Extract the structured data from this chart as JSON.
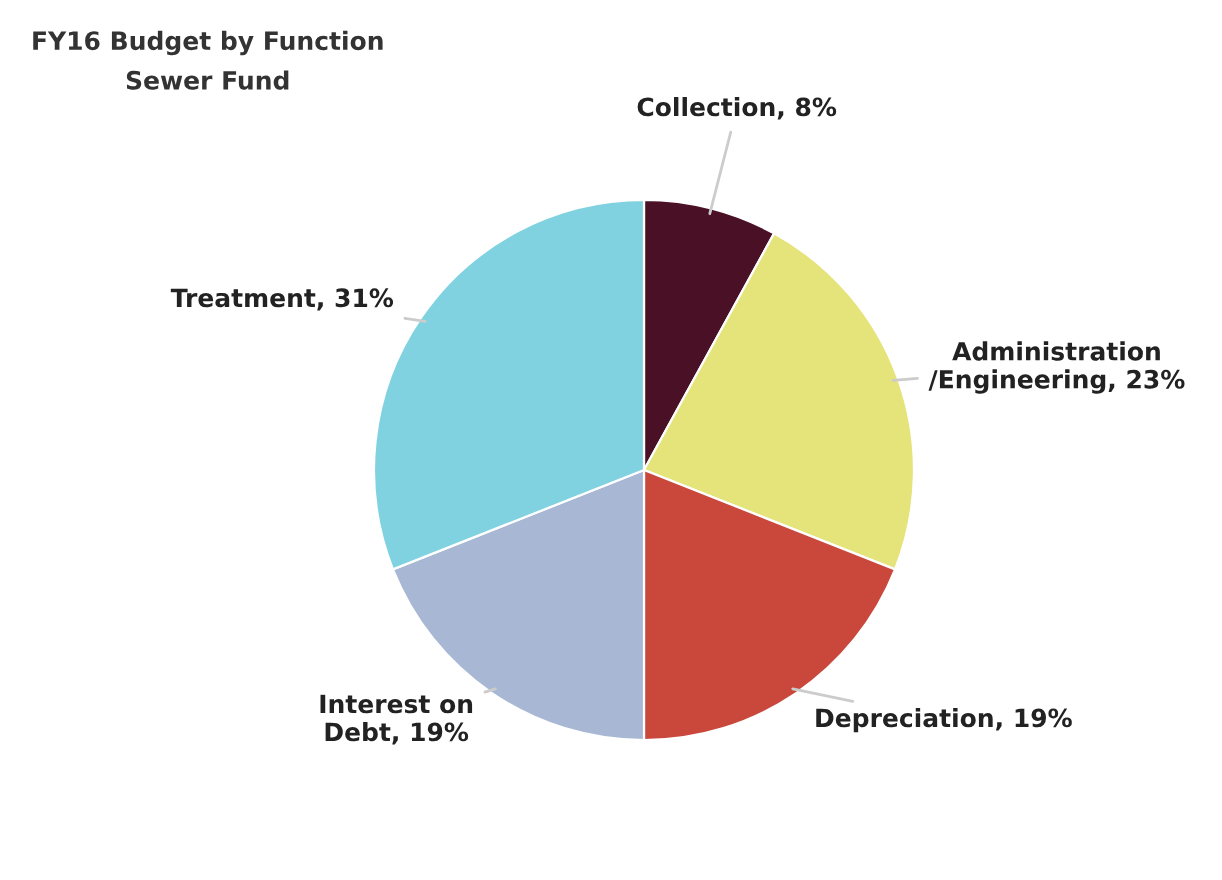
{
  "chart_data": {
    "type": "pie",
    "title": "FY16 Budget by Function",
    "subtitle": "Sewer Fund",
    "categories": [
      "Collection",
      "Administration\n/Engineering",
      "Depreciation",
      "Interest on\nDebt",
      "Treatment"
    ],
    "values": [
      8,
      23,
      19,
      19,
      31
    ],
    "value_labels": [
      "8%",
      "23%",
      "19%",
      "19%",
      "31%"
    ],
    "colors": [
      "#4a1126",
      "#e4e47a",
      "#c9473b",
      "#a8b8d4",
      "#80d2e0"
    ],
    "legend": false
  }
}
